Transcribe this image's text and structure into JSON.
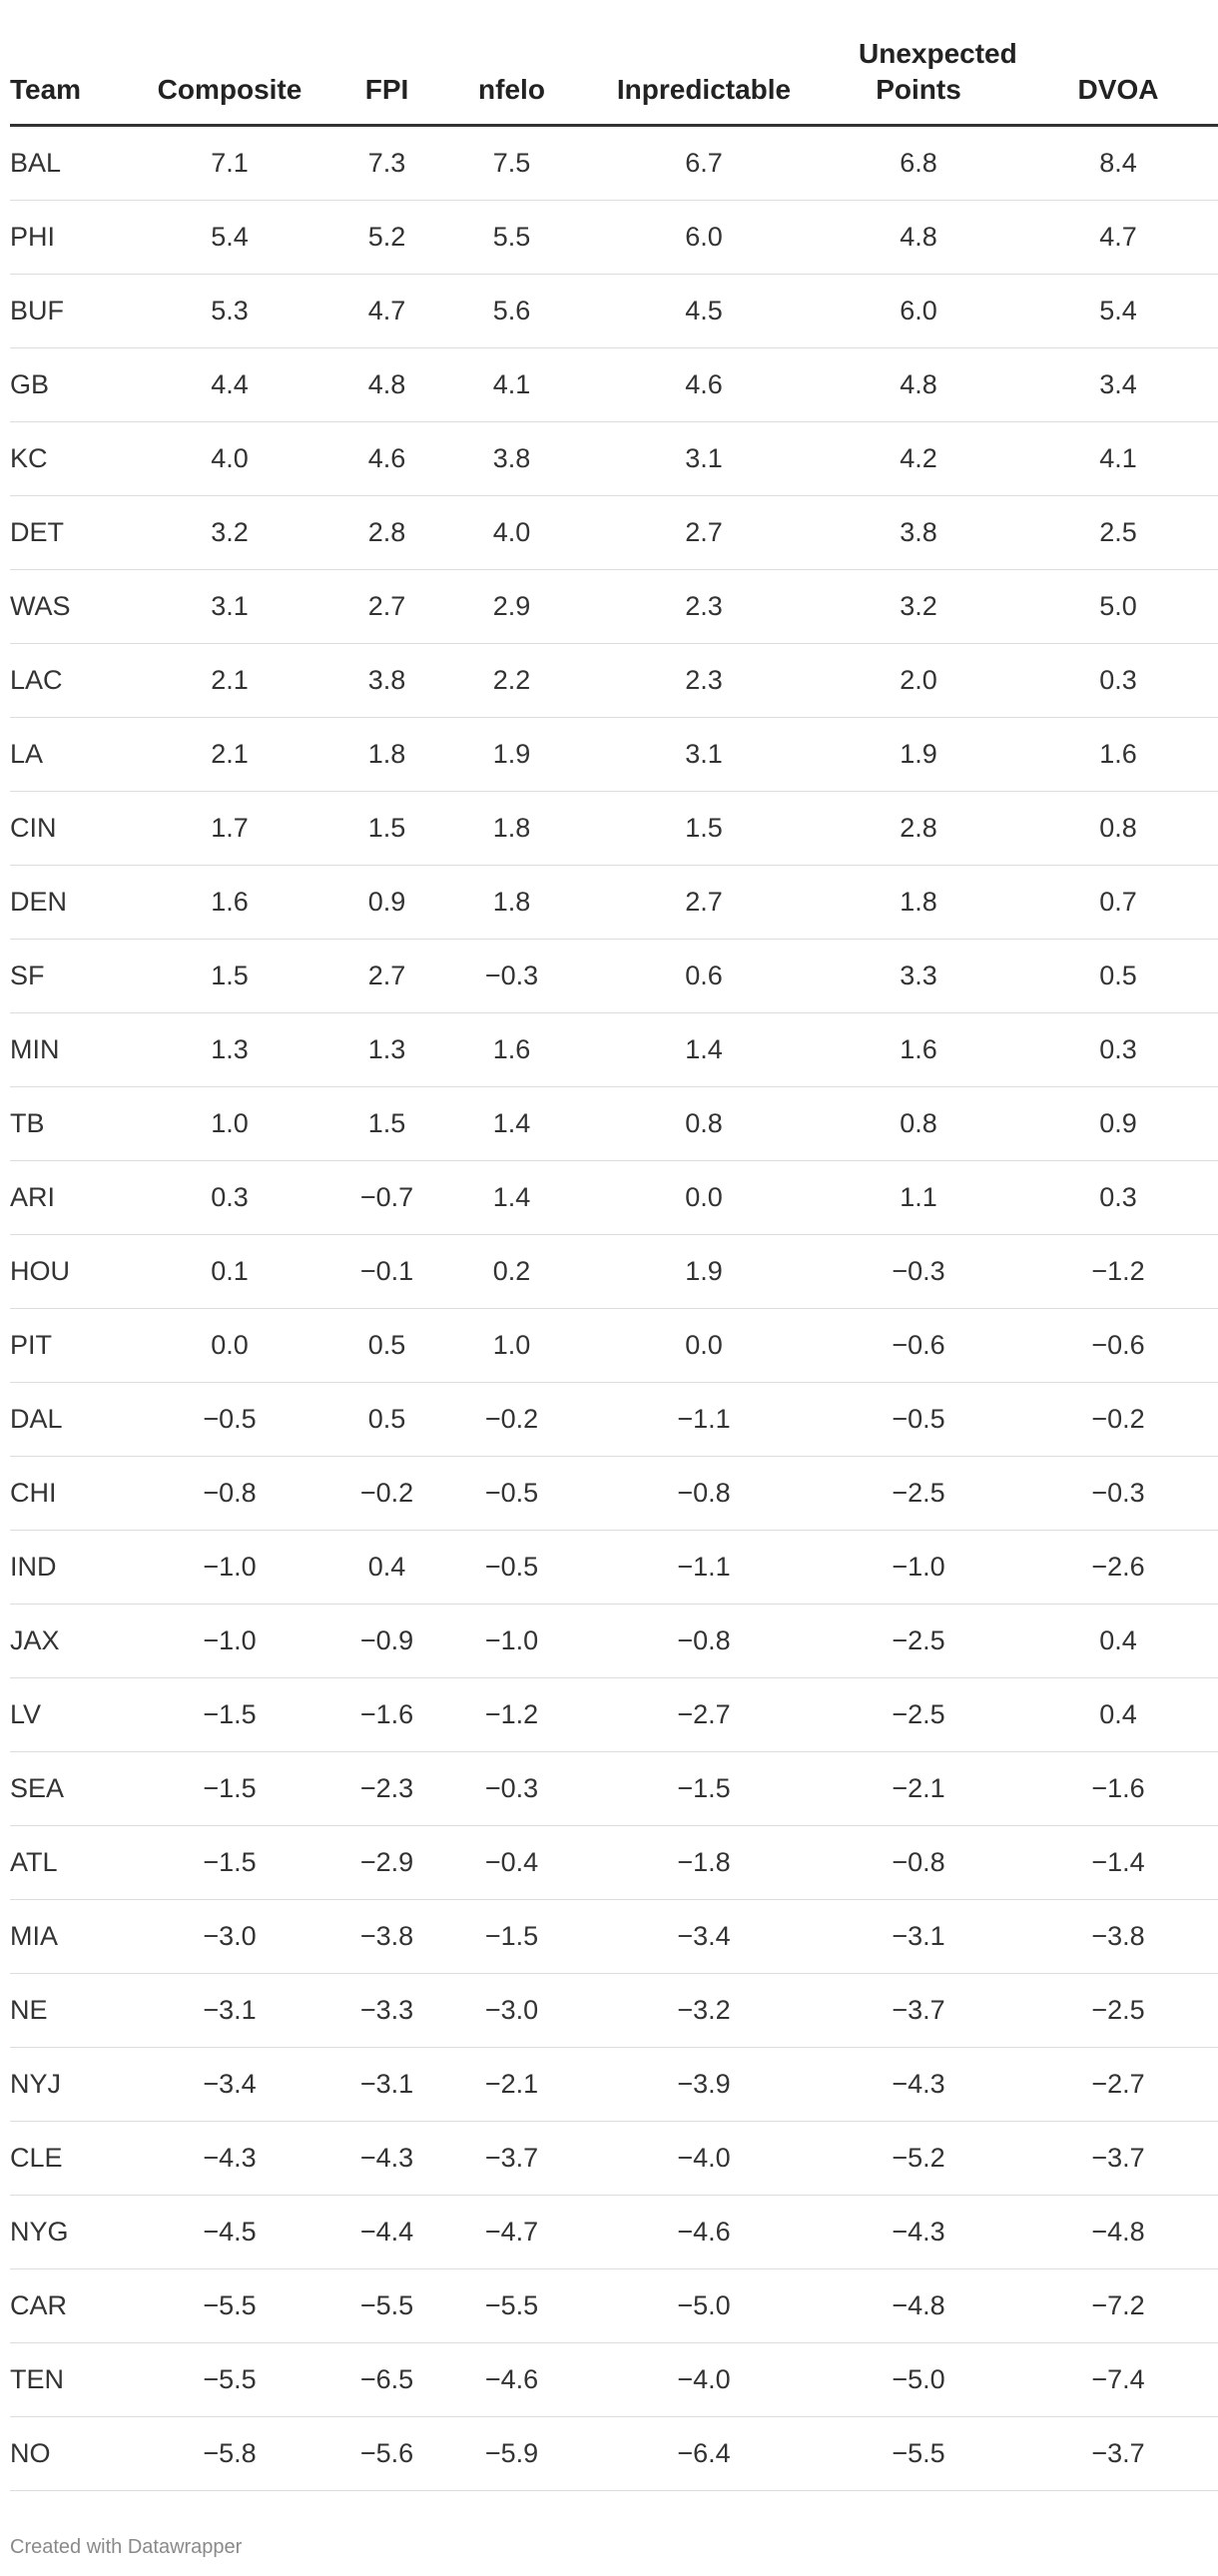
{
  "chart_data": {
    "type": "table",
    "columns": [
      "Team",
      "Composite",
      "FPI",
      "nfelo",
      "Inpredictable",
      "Unexpected Points",
      "DVOA"
    ],
    "rows": [
      [
        "BAL",
        "7.1",
        "7.3",
        "7.5",
        "6.7",
        "6.8",
        "8.4"
      ],
      [
        "PHI",
        "5.4",
        "5.2",
        "5.5",
        "6.0",
        "4.8",
        "4.7"
      ],
      [
        "BUF",
        "5.3",
        "4.7",
        "5.6",
        "4.5",
        "6.0",
        "5.4"
      ],
      [
        "GB",
        "4.4",
        "4.8",
        "4.1",
        "4.6",
        "4.8",
        "3.4"
      ],
      [
        "KC",
        "4.0",
        "4.6",
        "3.8",
        "3.1",
        "4.2",
        "4.1"
      ],
      [
        "DET",
        "3.2",
        "2.8",
        "4.0",
        "2.7",
        "3.8",
        "2.5"
      ],
      [
        "WAS",
        "3.1",
        "2.7",
        "2.9",
        "2.3",
        "3.2",
        "5.0"
      ],
      [
        "LAC",
        "2.1",
        "3.8",
        "2.2",
        "2.3",
        "2.0",
        "0.3"
      ],
      [
        "LA",
        "2.1",
        "1.8",
        "1.9",
        "3.1",
        "1.9",
        "1.6"
      ],
      [
        "CIN",
        "1.7",
        "1.5",
        "1.8",
        "1.5",
        "2.8",
        "0.8"
      ],
      [
        "DEN",
        "1.6",
        "0.9",
        "1.8",
        "2.7",
        "1.8",
        "0.7"
      ],
      [
        "SF",
        "1.5",
        "2.7",
        "−0.3",
        "0.6",
        "3.3",
        "0.5"
      ],
      [
        "MIN",
        "1.3",
        "1.3",
        "1.6",
        "1.4",
        "1.6",
        "0.3"
      ],
      [
        "TB",
        "1.0",
        "1.5",
        "1.4",
        "0.8",
        "0.8",
        "0.9"
      ],
      [
        "ARI",
        "0.3",
        "−0.7",
        "1.4",
        "0.0",
        "1.1",
        "0.3"
      ],
      [
        "HOU",
        "0.1",
        "−0.1",
        "0.2",
        "1.9",
        "−0.3",
        "−1.2"
      ],
      [
        "PIT",
        "0.0",
        "0.5",
        "1.0",
        "0.0",
        "−0.6",
        "−0.6"
      ],
      [
        "DAL",
        "−0.5",
        "0.5",
        "−0.2",
        "−1.1",
        "−0.5",
        "−0.2"
      ],
      [
        "CHI",
        "−0.8",
        "−0.2",
        "−0.5",
        "−0.8",
        "−2.5",
        "−0.3"
      ],
      [
        "IND",
        "−1.0",
        "0.4",
        "−0.5",
        "−1.1",
        "−1.0",
        "−2.6"
      ],
      [
        "JAX",
        "−1.0",
        "−0.9",
        "−1.0",
        "−0.8",
        "−2.5",
        "0.4"
      ],
      [
        "LV",
        "−1.5",
        "−1.6",
        "−1.2",
        "−2.7",
        "−2.5",
        "0.4"
      ],
      [
        "SEA",
        "−1.5",
        "−2.3",
        "−0.3",
        "−1.5",
        "−2.1",
        "−1.6"
      ],
      [
        "ATL",
        "−1.5",
        "−2.9",
        "−0.4",
        "−1.8",
        "−0.8",
        "−1.4"
      ],
      [
        "MIA",
        "−3.0",
        "−3.8",
        "−1.5",
        "−3.4",
        "−3.1",
        "−3.8"
      ],
      [
        "NE",
        "−3.1",
        "−3.3",
        "−3.0",
        "−3.2",
        "−3.7",
        "−2.5"
      ],
      [
        "NYJ",
        "−3.4",
        "−3.1",
        "−2.1",
        "−3.9",
        "−4.3",
        "−2.7"
      ],
      [
        "CLE",
        "−4.3",
        "−4.3",
        "−3.7",
        "−4.0",
        "−5.2",
        "−3.7"
      ],
      [
        "NYG",
        "−4.5",
        "−4.4",
        "−4.7",
        "−4.6",
        "−4.3",
        "−4.8"
      ],
      [
        "CAR",
        "−5.5",
        "−5.5",
        "−5.5",
        "−5.0",
        "−4.8",
        "−7.2"
      ],
      [
        "TEN",
        "−5.5",
        "−6.5",
        "−4.6",
        "−4.0",
        "−5.0",
        "−7.4"
      ],
      [
        "NO",
        "−5.8",
        "−5.6",
        "−5.9",
        "−6.4",
        "−5.5",
        "−3.7"
      ]
    ]
  },
  "footer": "Created with Datawrapper"
}
